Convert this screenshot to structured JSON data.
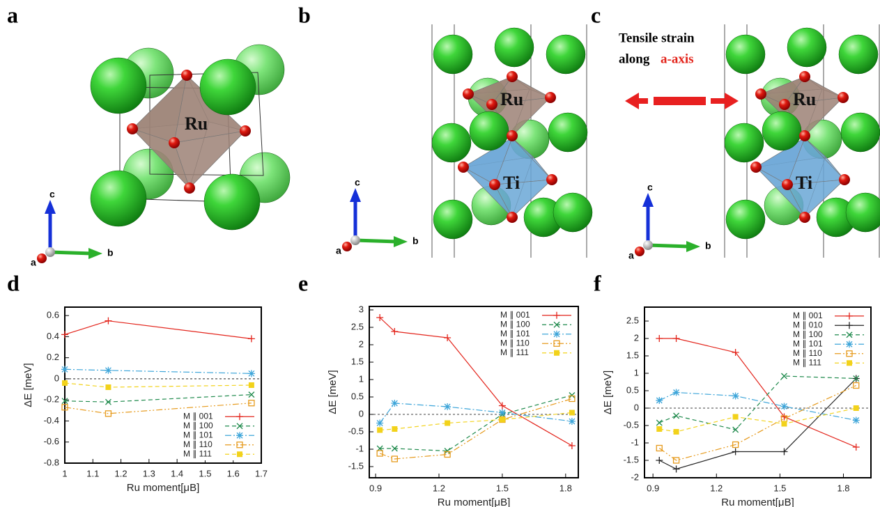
{
  "structures": [
    {
      "panel": "a",
      "atom_labels": [
        "Ru"
      ],
      "axes": [
        "c",
        "b",
        "a"
      ]
    },
    {
      "panel": "b",
      "atom_labels": [
        "Ru",
        "Ti"
      ],
      "axes": [
        "c",
        "b",
        "a"
      ]
    },
    {
      "panel": "c",
      "atom_labels": [
        "Ru",
        "Ti"
      ],
      "axes": [
        "c",
        "b",
        "a"
      ],
      "annotation": [
        "Tensile strain",
        "along",
        "a-axis"
      ]
    }
  ],
  "chart_data": [
    {
      "type": "line",
      "panel": "d",
      "x_label": "Ru moment[μB]",
      "y_label": "ΔE [meV]",
      "x": [
        1.0,
        1.155,
        1.665
      ],
      "xlim": [
        1,
        1.7
      ],
      "xticks": [
        {
          "value": 1,
          "label": "1"
        },
        1.1,
        1.2,
        1.3,
        1.4,
        1.5,
        1.6,
        1.7
      ],
      "ylim": [
        -0.8,
        0.68
      ],
      "yticks": [
        -0.8,
        -0.6,
        -0.4,
        -0.2,
        0,
        0.2,
        0.4,
        0.6
      ],
      "zero_line": true,
      "legend": "bottom-right",
      "series": [
        {
          "name": "M ∥ 001",
          "color": "#e3241b",
          "marker": "plus",
          "dash": "solid",
          "values": [
            0.42,
            0.55,
            0.38
          ]
        },
        {
          "name": "M ∥ 100",
          "color": "#1f8a4c",
          "marker": "cross",
          "dash": "dashed",
          "values": [
            -0.21,
            -0.22,
            -0.15
          ]
        },
        {
          "name": "M ∥ 101",
          "color": "#3da5d9",
          "marker": "star",
          "dash": "dash-dot",
          "values": [
            0.09,
            0.08,
            0.05
          ]
        },
        {
          "name": "M ∥ 110",
          "color": "#e69a1c",
          "marker": "square-open",
          "dash": "dash-dot-dot",
          "values": [
            -0.27,
            -0.33,
            -0.23
          ]
        },
        {
          "name": "M ∥ 111",
          "color": "#f2d21b",
          "marker": "square-filled",
          "dash": "dashed",
          "values": [
            -0.04,
            -0.08,
            -0.06
          ]
        }
      ]
    },
    {
      "type": "line",
      "panel": "e",
      "x_label": "Ru moment[μB]",
      "y_label": "ΔE [meV]",
      "x": [
        0.92,
        0.99,
        1.24,
        1.5,
        1.83
      ],
      "xlim": [
        0.87,
        1.86
      ],
      "xticks": [
        0.9,
        1.2,
        1.5,
        1.8
      ],
      "ylim": [
        -1.82,
        3.1
      ],
      "yticks": [
        -1.5,
        -1,
        -0.5,
        0,
        0.5,
        1,
        1.5,
        2,
        2.5,
        3
      ],
      "zero_line": true,
      "legend": "top-right",
      "series": [
        {
          "name": "M ∥ 001",
          "color": "#e3241b",
          "marker": "plus",
          "dash": "solid",
          "values": [
            2.78,
            2.38,
            2.2,
            0.25,
            -0.9
          ]
        },
        {
          "name": "M ∥ 100",
          "color": "#1f8a4c",
          "marker": "cross",
          "dash": "dashed",
          "values": [
            -0.98,
            -0.98,
            -1.05,
            0.0,
            0.55
          ]
        },
        {
          "name": "M ∥ 101",
          "color": "#3da5d9",
          "marker": "star",
          "dash": "dash-dot",
          "values": [
            -0.25,
            0.32,
            0.22,
            0.05,
            -0.2
          ]
        },
        {
          "name": "M ∥ 110",
          "color": "#e69a1c",
          "marker": "square-open",
          "dash": "dash-dot-dot",
          "values": [
            -1.12,
            -1.28,
            -1.15,
            -0.15,
            0.45
          ]
        },
        {
          "name": "M ∥ 111",
          "color": "#f2d21b",
          "marker": "square-filled",
          "dash": "dashed",
          "values": [
            -0.45,
            -0.42,
            -0.25,
            -0.15,
            0.05
          ]
        }
      ]
    },
    {
      "type": "line",
      "panel": "f",
      "x_label": "Ru moment[μB]",
      "y_label": "ΔE [meV]",
      "x": [
        0.93,
        1.01,
        1.29,
        1.52,
        1.86
      ],
      "xlim": [
        0.86,
        1.93
      ],
      "xticks": [
        0.9,
        1.2,
        1.5,
        1.8
      ],
      "ylim": [
        -2,
        2.9
      ],
      "yticks": [
        -2,
        -1.5,
        -1,
        -0.5,
        0,
        0.5,
        1,
        1.5,
        2,
        2.5
      ],
      "zero_line": true,
      "legend": "top-right",
      "series": [
        {
          "name": "M ∥ 001",
          "color": "#e3241b",
          "marker": "plus",
          "dash": "solid",
          "values": [
            2.0,
            2.0,
            1.6,
            -0.25,
            -1.12
          ]
        },
        {
          "name": "M ∥ 010",
          "color": "#222222",
          "marker": "plus",
          "dash": "solid",
          "values": [
            -1.5,
            -1.75,
            -1.25,
            -1.25,
            0.85
          ]
        },
        {
          "name": "M ∥ 100",
          "color": "#1f8a4c",
          "marker": "cross",
          "dash": "dashed",
          "values": [
            -0.42,
            -0.22,
            -0.62,
            0.92,
            0.85
          ]
        },
        {
          "name": "M ∥ 101",
          "color": "#3da5d9",
          "marker": "star",
          "dash": "dash-dot",
          "values": [
            0.22,
            0.45,
            0.35,
            0.05,
            -0.35
          ]
        },
        {
          "name": "M ∥ 110",
          "color": "#e69a1c",
          "marker": "square-open",
          "dash": "dash-dot-dot",
          "values": [
            -1.15,
            -1.5,
            -1.05,
            -0.3,
            0.65
          ]
        },
        {
          "name": "M ∥ 111",
          "color": "#f2d21b",
          "marker": "square-filled",
          "dash": "dashed",
          "values": [
            -0.6,
            -0.68,
            -0.25,
            -0.45,
            0.0
          ]
        }
      ]
    }
  ]
}
